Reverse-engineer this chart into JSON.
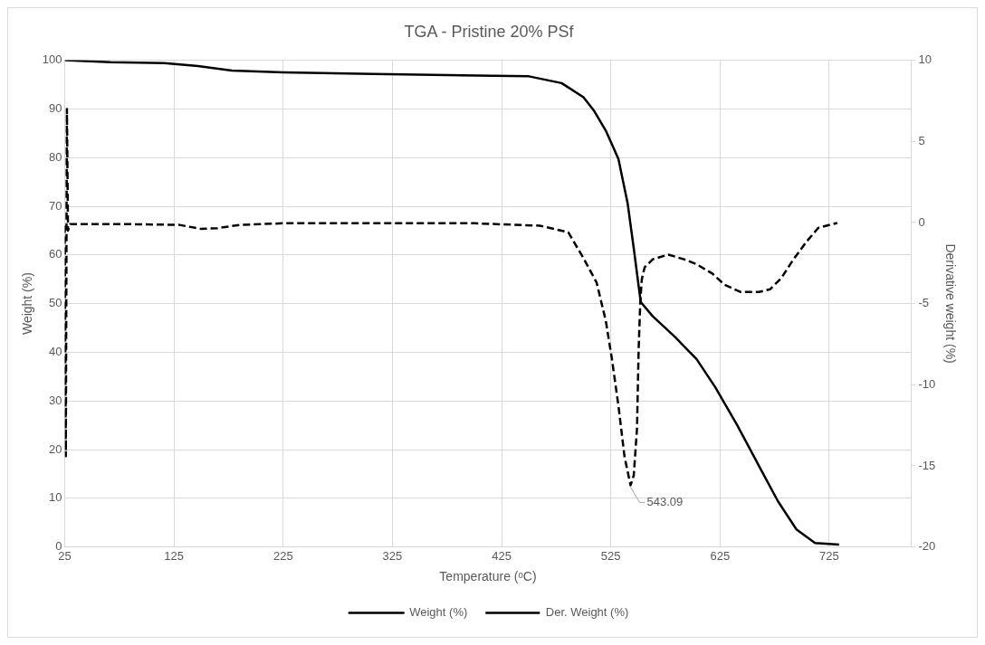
{
  "chart_data": {
    "type": "line",
    "title": "TGA - Pristine 20% PSf",
    "xlabel": "Temperature (ᵒC)",
    "ylabel": "Weight (%)",
    "y2label": "Derivative weight (%)",
    "xlim": [
      25,
      800
    ],
    "xticks": [
      25,
      125,
      225,
      325,
      425,
      525,
      625,
      725
    ],
    "ylim": [
      0,
      100
    ],
    "yticks": [
      0,
      10,
      20,
      30,
      40,
      50,
      60,
      70,
      80,
      90,
      100
    ],
    "y2lim": [
      -20,
      10
    ],
    "y2ticks": [
      -20,
      -15,
      -10,
      -5,
      0,
      5,
      10
    ],
    "grid": true,
    "legend": "bottom",
    "marker": "none",
    "annotations": [
      "543.09"
    ],
    "series": [
      {
        "name": "Weight (%)",
        "color": "#000000",
        "line_style": "solid",
        "x": [
          25,
          67,
          116,
          147,
          178,
          225,
          307,
          417,
          450,
          480,
          500,
          510,
          520.5,
          532,
          540.5,
          546,
          550.5,
          552.5,
          563.4,
          583.5,
          603.5,
          620.7,
          640.8,
          660.8,
          678,
          695,
          712,
          734
        ],
        "values": [
          100,
          99.6,
          99.4,
          98.8,
          97.9,
          97.5,
          97.2,
          96.8,
          96.7,
          95.3,
          92.4,
          89.5,
          85.5,
          79.7,
          70.5,
          61.4,
          53.6,
          50.3,
          47.4,
          43.2,
          38.6,
          32.8,
          25,
          16.6,
          9.4,
          3.6,
          0.8,
          0.5
        ]
      },
      {
        "name": "Der. Weight (%)",
        "color": "#000000",
        "line_style": "dashed",
        "axis": "y2",
        "x": [
          25,
          26,
          27,
          28,
          30,
          80,
          130,
          150,
          165,
          185,
          225,
          300,
          400,
          460,
          486,
          500,
          512,
          520.4,
          526,
          532,
          537.6,
          543.09,
          546,
          549,
          550.5,
          552,
          553.4,
          556,
          563.4,
          577.7,
          592,
          603.5,
          618,
          629,
          643.6,
          660.8,
          670.8,
          681,
          692.3,
          704,
          715,
          732.4
        ],
        "values": [
          -0.2,
          -14.4,
          7,
          -0.5,
          -0.1,
          -0.1,
          -0.15,
          -0.4,
          -0.35,
          -0.15,
          -0.05,
          -0.05,
          -0.05,
          -0.2,
          -0.6,
          -2.2,
          -3.7,
          -6.05,
          -8.4,
          -11.3,
          -14.45,
          -16.2,
          -15.6,
          -12.7,
          -7.8,
          -4.9,
          -3.5,
          -2.76,
          -2.27,
          -1.98,
          -2.27,
          -2.57,
          -3.15,
          -3.83,
          -4.28,
          -4.28,
          -4.12,
          -3.44,
          -2.27,
          -1.2,
          -0.33,
          -0.03
        ]
      }
    ]
  }
}
